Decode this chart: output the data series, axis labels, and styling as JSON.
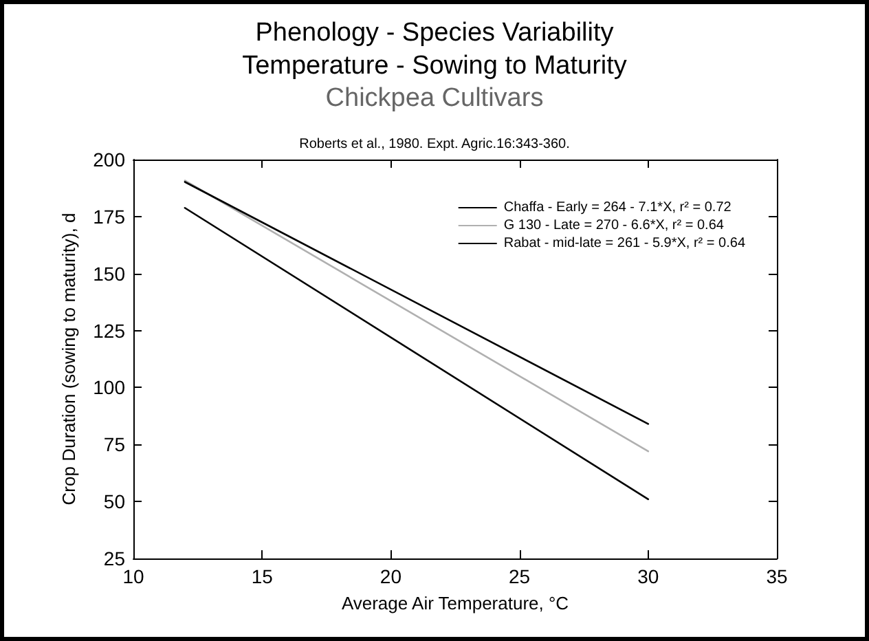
{
  "chart_data": {
    "type": "line",
    "title": "Phenology - Species Variability\nTemperature - Sowing to Maturity",
    "subtitle": "Chickpea Cultivars",
    "annotations": [
      "Roberts et al., 1980. Expt. Agric.16:343-360."
    ],
    "xlabel": "Average Air Temperature, °C",
    "ylabel": "Crop Duration (sowing to maturity), d",
    "x": [
      12,
      30
    ],
    "series": [
      {
        "name": "Chaffa - Early = 264 - 7.1*X, r² = 0.72",
        "color": "#000000",
        "values": [
          178.8,
          51
        ]
      },
      {
        "name": "G 130 - Late = 270 - 6.6*X, r² = 0.64",
        "color": "#b0b0b0",
        "values": [
          190.8,
          72
        ]
      },
      {
        "name": "Rabat - mid-late = 261 - 5.9*X, r² = 0.64",
        "color": "#000000",
        "values": [
          190.2,
          84
        ]
      }
    ],
    "xlim": [
      10,
      35
    ],
    "xticks": [
      10,
      15,
      20,
      25,
      30,
      35
    ],
    "ylim": [
      25,
      200
    ],
    "yticks": [
      25,
      50,
      75,
      100,
      125,
      150,
      175,
      200
    ],
    "grid": false,
    "legend": "top right",
    "marker": "none",
    "line_style": "solid"
  }
}
